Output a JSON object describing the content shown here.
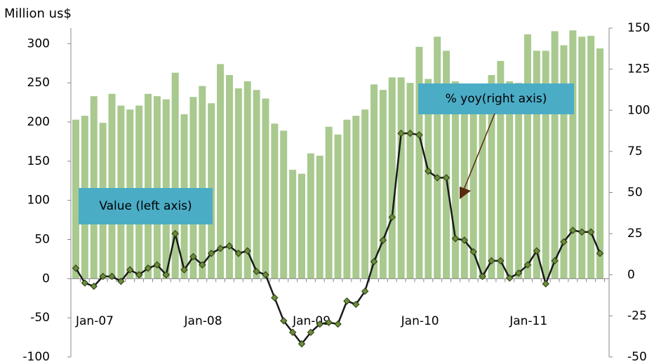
{
  "chart_data": {
    "type": "bar_line",
    "y_label": "Million us$",
    "categories": [
      "Jan-07",
      null,
      null,
      null,
      null,
      null,
      null,
      null,
      null,
      null,
      null,
      null,
      "Jan-08",
      null,
      null,
      null,
      null,
      null,
      null,
      null,
      null,
      null,
      null,
      null,
      "Jan-09",
      null,
      null,
      null,
      null,
      null,
      null,
      null,
      null,
      null,
      null,
      null,
      "Jan-10",
      null,
      null,
      null,
      null,
      null,
      null,
      null,
      null,
      null,
      null,
      null,
      "Jan-11",
      null,
      null,
      null,
      null,
      null,
      null,
      null,
      null,
      null,
      null
    ],
    "series": [
      {
        "name": "Value (left axis)",
        "type": "bar",
        "color": "#a9c98f",
        "axis": "y",
        "values": [
          203,
          208,
          233,
          199,
          236,
          221,
          216,
          221,
          236,
          233,
          229,
          263,
          210,
          232,
          246,
          224,
          274,
          260,
          243,
          252,
          241,
          230,
          198,
          189,
          139,
          134,
          160,
          157,
          194,
          184,
          203,
          208,
          216,
          248,
          241,
          257,
          257,
          250,
          296,
          255,
          309,
          291,
          252,
          248,
          246,
          246,
          260,
          278,
          252,
          250,
          312,
          291,
          291,
          316,
          298,
          317,
          309,
          310,
          294
        ]
      },
      {
        "name": "% yoy(right axis)",
        "type": "line",
        "color": "#1a1a1a",
        "marker_color": "#6b8e3a",
        "axis": "y2",
        "values": [
          4,
          -5,
          -7,
          -1,
          -1,
          -4,
          3,
          0,
          4,
          6,
          0,
          25,
          3,
          11,
          6,
          13,
          16,
          17.5,
          13,
          14.5,
          2,
          0,
          -14,
          -28,
          -35,
          -42,
          -35,
          -30,
          -29,
          -30,
          -16,
          -18,
          -10,
          8,
          21,
          35,
          86,
          86,
          85,
          63,
          59,
          59,
          22,
          21,
          14,
          -1,
          8.5,
          8.5,
          -2,
          1,
          6,
          14.5,
          -5.5,
          8.5,
          20,
          27,
          26,
          26,
          13
        ]
      }
    ],
    "ylim": [
      -100,
      320
    ],
    "yticks": [
      -100,
      -50,
      0,
      50,
      100,
      150,
      200,
      250,
      300
    ],
    "y2lim": [
      -50,
      150
    ],
    "y2ticks": [
      -50,
      -25,
      0,
      25,
      50,
      75,
      100,
      125,
      150
    ],
    "annotation_color": "#4bacc6"
  }
}
